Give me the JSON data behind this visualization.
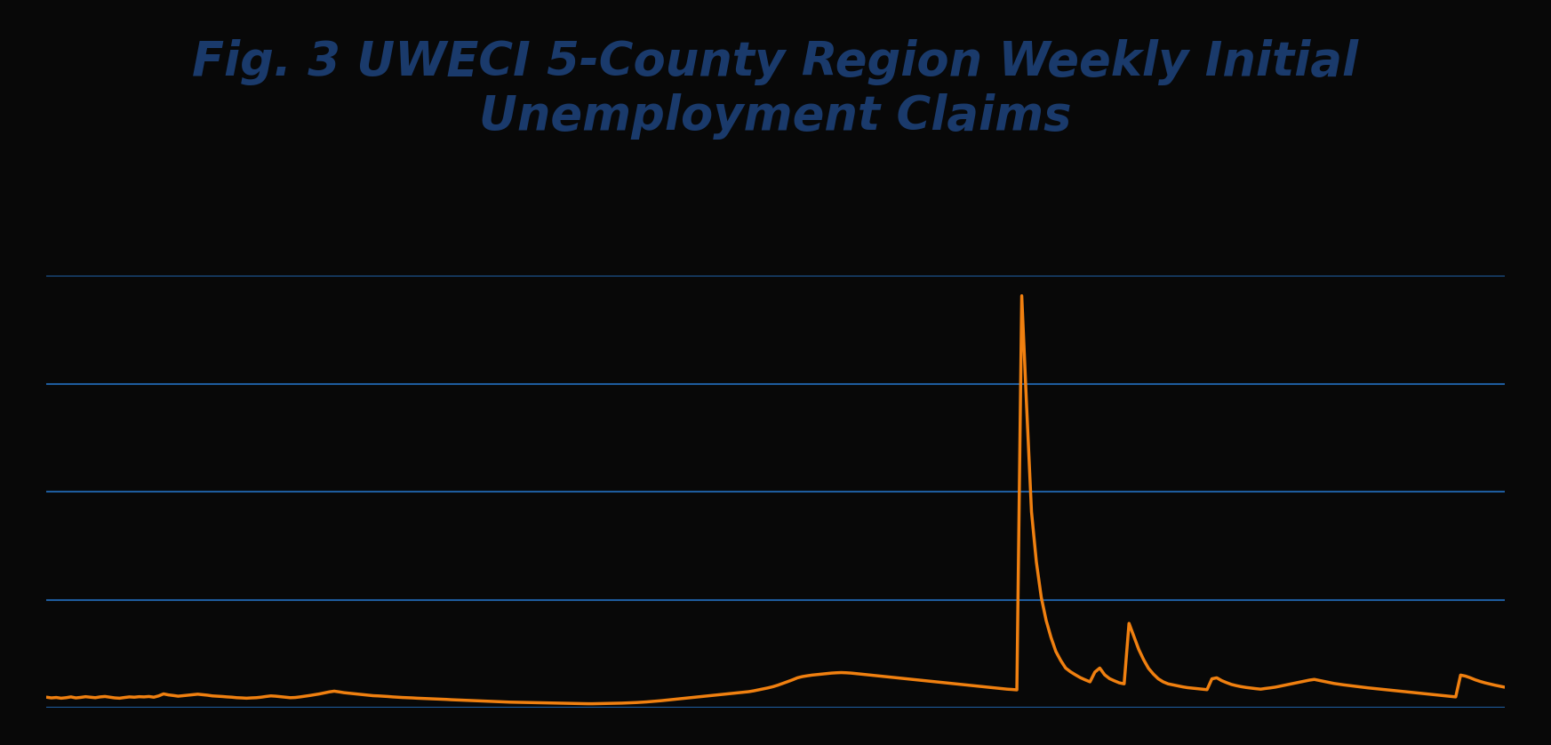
{
  "title": "Fig. 3 UWECI 5-County Region Weekly Initial\nUnemployment Claims",
  "title_color": "#1a3a6b",
  "title_fontsize": 38,
  "background_color": "#080808",
  "line_color": "#f08010",
  "grid_color": "#1e5c9e",
  "line_width": 2.5,
  "ylim": [
    0,
    4300
  ],
  "n_grid_lines": 5,
  "y_values": [
    105,
    98,
    102,
    95,
    100,
    108,
    98,
    103,
    110,
    105,
    100,
    108,
    112,
    105,
    98,
    95,
    102,
    108,
    105,
    110,
    108,
    112,
    105,
    118,
    138,
    128,
    122,
    115,
    120,
    125,
    130,
    135,
    130,
    125,
    118,
    115,
    112,
    108,
    105,
    100,
    98,
    95,
    98,
    100,
    105,
    112,
    118,
    115,
    110,
    105,
    100,
    102,
    108,
    115,
    122,
    130,
    138,
    148,
    158,
    165,
    158,
    150,
    145,
    140,
    135,
    130,
    125,
    120,
    118,
    115,
    112,
    108,
    105,
    102,
    100,
    98,
    95,
    93,
    91,
    89,
    87,
    85,
    83,
    80,
    78,
    76,
    74,
    72,
    70,
    68,
    66,
    64,
    62,
    60,
    58,
    56,
    55,
    54,
    53,
    52,
    51,
    50,
    49,
    48,
    47,
    46,
    45,
    44,
    43,
    42,
    41,
    40,
    40,
    41,
    42,
    43,
    44,
    45,
    46,
    48,
    50,
    52,
    55,
    58,
    62,
    66,
    70,
    75,
    80,
    85,
    90,
    95,
    100,
    105,
    110,
    115,
    120,
    125,
    130,
    135,
    140,
    145,
    150,
    155,
    160,
    168,
    178,
    188,
    198,
    210,
    225,
    242,
    260,
    278,
    298,
    310,
    318,
    325,
    330,
    335,
    340,
    345,
    348,
    350,
    348,
    345,
    340,
    335,
    330,
    325,
    320,
    315,
    310,
    305,
    300,
    295,
    290,
    285,
    280,
    275,
    270,
    265,
    260,
    255,
    250,
    245,
    240,
    235,
    230,
    225,
    220,
    215,
    210,
    205,
    200,
    195,
    190,
    185,
    182,
    178,
    4100,
    3000,
    1950,
    1450,
    1100,
    870,
    700,
    560,
    470,
    395,
    358,
    328,
    300,
    278,
    258,
    355,
    395,
    328,
    290,
    268,
    248,
    238,
    840,
    710,
    580,
    478,
    392,
    335,
    288,
    258,
    238,
    228,
    218,
    208,
    200,
    195,
    190,
    185,
    180,
    288,
    298,
    270,
    250,
    232,
    220,
    210,
    202,
    196,
    190,
    185,
    192,
    198,
    205,
    215,
    225,
    235,
    245,
    255,
    265,
    275,
    282,
    272,
    262,
    252,
    242,
    235,
    228,
    222,
    216,
    210,
    204,
    198,
    193,
    188,
    183,
    178,
    173,
    168,
    163,
    158,
    153,
    148,
    143,
    138,
    133,
    128,
    123,
    118,
    113,
    108,
    325,
    315,
    298,
    278,
    262,
    248,
    236,
    225,
    215,
    205
  ]
}
